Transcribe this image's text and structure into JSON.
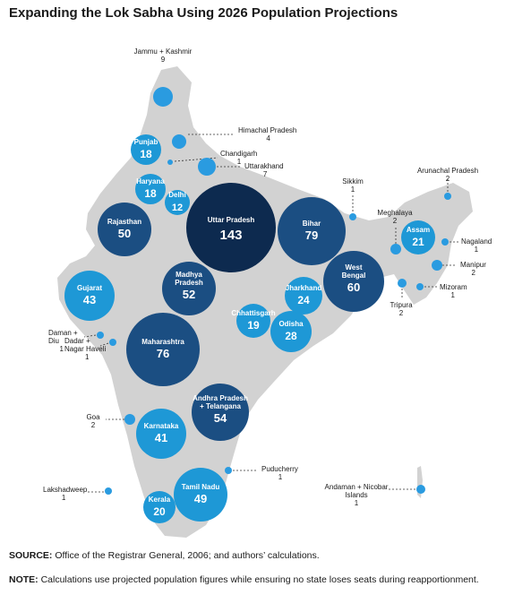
{
  "title": "Expanding the Lok Sabha Using 2026 Population Projections",
  "colors": {
    "land": "#d2d2d2",
    "dark_navy": "#0d2a4f",
    "navy": "#1b4e82",
    "mid_blue": "#1a6fae",
    "light_blue": "#1e98d6",
    "dot_blue": "#2a9be0",
    "leader": "#333333"
  },
  "states": [
    {
      "name": "Uttar Pradesh",
      "seats": "143"
    },
    {
      "name": "Bihar",
      "seats": "79"
    },
    {
      "name": "Maharashtra",
      "seats": "76"
    },
    {
      "name": "West Bengal",
      "seats": "60"
    },
    {
      "name": "Andhra Pradesh + Telangana",
      "seats": "54"
    },
    {
      "name": "Madhya Pradesh",
      "seats": "52"
    },
    {
      "name": "Rajasthan",
      "seats": "50"
    },
    {
      "name": "Tamil Nadu",
      "seats": "49"
    },
    {
      "name": "Gujarat",
      "seats": "43"
    },
    {
      "name": "Karnataka",
      "seats": "41"
    },
    {
      "name": "Odisha",
      "seats": "28"
    },
    {
      "name": "Jharkhand",
      "seats": "24"
    },
    {
      "name": "Assam",
      "seats": "21"
    },
    {
      "name": "Kerala",
      "seats": "20"
    },
    {
      "name": "Chhattisgarh",
      "seats": "19"
    },
    {
      "name": "Punjab",
      "seats": "18"
    },
    {
      "name": "Haryana",
      "seats": "18"
    },
    {
      "name": "Delhi",
      "seats": "12"
    }
  ],
  "small_states": [
    {
      "name": "Jammu + Kashmir",
      "seats": "9"
    },
    {
      "name": "Himachal Pradesh",
      "seats": "4"
    },
    {
      "name": "Chandigarh",
      "seats": "1"
    },
    {
      "name": "Uttarakhand",
      "seats": "7"
    },
    {
      "name": "Sikkim",
      "seats": "1"
    },
    {
      "name": "Arunachal Pradesh",
      "seats": "2"
    },
    {
      "name": "Meghalaya",
      "seats": "2"
    },
    {
      "name": "Nagaland",
      "seats": "1"
    },
    {
      "name": "Manipur",
      "seats": "2"
    },
    {
      "name": "Mizoram",
      "seats": "1"
    },
    {
      "name": "Tripura",
      "seats": "2"
    },
    {
      "name": "Daman + Diu",
      "seats": "1"
    },
    {
      "name": "Dadar + Nagar Haveli",
      "seats": "1"
    },
    {
      "name": "Goa",
      "seats": "2"
    },
    {
      "name": "Puducherry",
      "seats": "1"
    },
    {
      "name": "Lakshadweep",
      "seats": "1"
    },
    {
      "name": "Andaman + Nicobar Islands",
      "seats": "1"
    }
  ],
  "source": {
    "label": "SOURCE:",
    "text": " Office of the Registrar General, 2006; and authors’ calculations."
  },
  "note": {
    "label": "NOTE:",
    "text": " Calculations use projected population figures while ensuring no state loses seats during reapportionment."
  }
}
